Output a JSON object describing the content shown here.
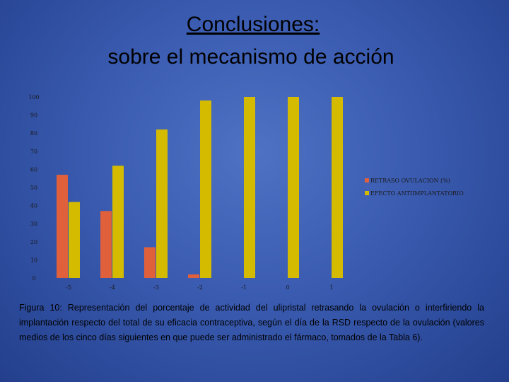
{
  "slide": {
    "title_line1": "Conclusiones:",
    "title_line2": "sobre el mecanismo de acción",
    "caption": "Figura 10: Representación del porcentaje de actividad del ulipristal retrasando la ovulación o interfiriendo la implantación respecto del total de su eficacia contraceptiva, según el día de la RSD respecto de la ovulación (valores medios de los cinco días siguientes en que puede ser administrado el fármaco, tomados de la Tabla 6)."
  },
  "colors": {
    "series1": "#e0603c",
    "series2": "#d4bb00"
  },
  "chart_data": {
    "type": "bar",
    "categories": [
      "-5",
      "-4",
      "-3",
      "-2",
      "-1",
      "0",
      "1"
    ],
    "series": [
      {
        "name": "RETRASO OVULACION (%)",
        "values": [
          57,
          37,
          17,
          2,
          0,
          0,
          0
        ]
      },
      {
        "name": "EFECTO ANTIIMPLANTATORIO",
        "values": [
          42,
          62,
          82,
          98,
          100,
          100,
          100
        ]
      }
    ],
    "yticks": [
      "0",
      "10",
      "20",
      "30",
      "40",
      "50",
      "60",
      "70",
      "80",
      "90",
      "100"
    ],
    "ylim": [
      0,
      100
    ],
    "legend": "right"
  }
}
